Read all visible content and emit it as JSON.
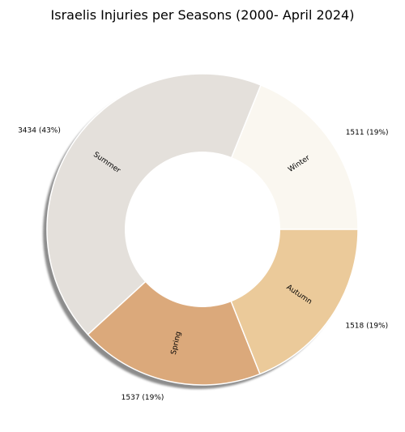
{
  "chart_data": {
    "type": "pie",
    "title": "Israelis Injuries per Seasons (2000- April 2024)",
    "donut": true,
    "shadow": true,
    "categories": [
      "Winter",
      "Summer",
      "Spring",
      "Autumn"
    ],
    "values": [
      1511,
      3434,
      1537,
      1518
    ],
    "value_labels": [
      "1511 (19%)",
      "3434 (43%)",
      "1537 (19%)",
      "1518 (19%)"
    ],
    "colors": [
      "#faf7f0",
      "#e4e0db",
      "#dba97b",
      "#ebca9a"
    ],
    "start_angle_deg": 0,
    "direction": "counterclockwise"
  }
}
